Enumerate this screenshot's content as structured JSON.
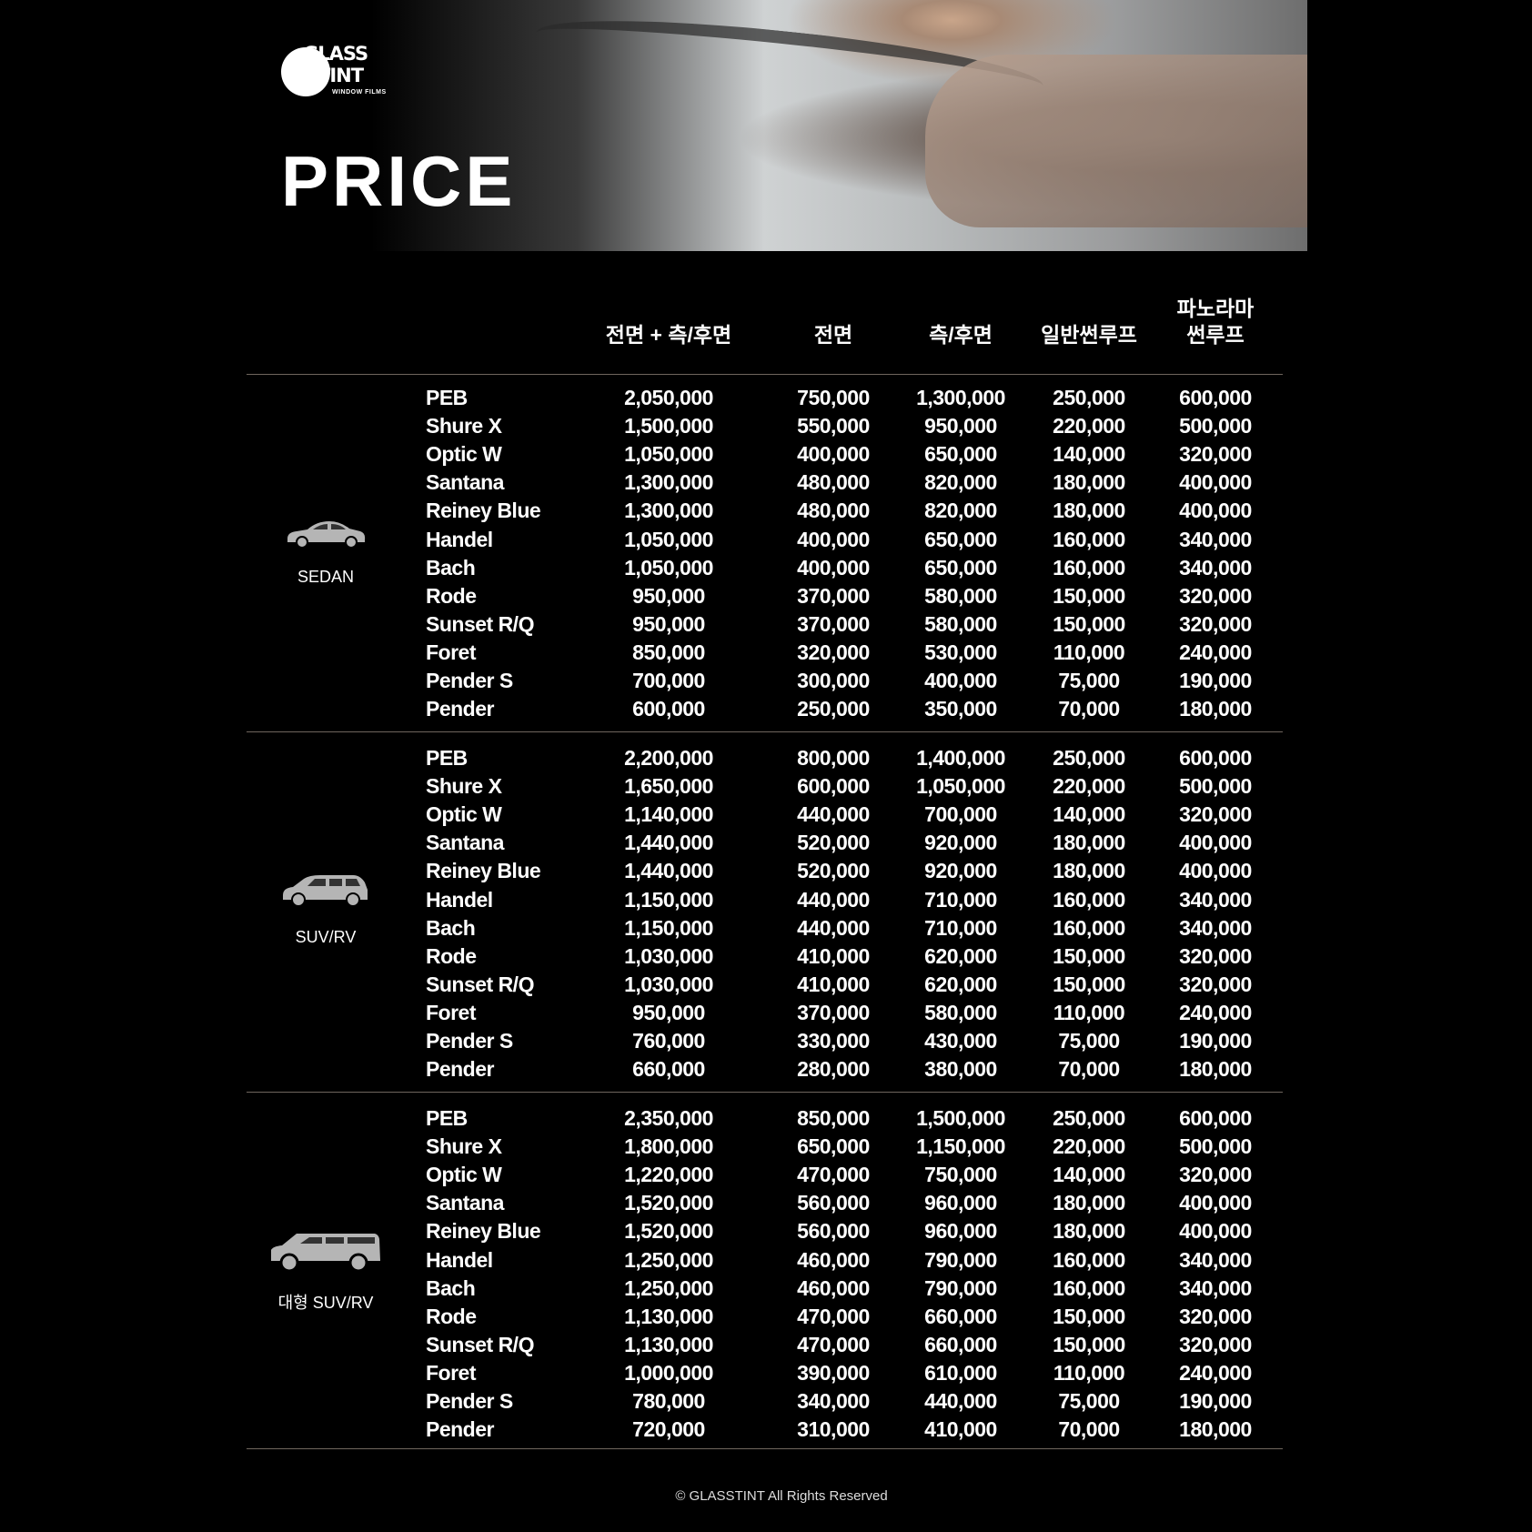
{
  "header": {
    "logo_text": "GLASS TINT WINDOW FILMS",
    "title": "PRICE"
  },
  "columns": [
    "전면 + 측/후면",
    "전면",
    "측/후면",
    "일반썬루프",
    "파노라마\n썬루프"
  ],
  "columns_lines": {
    "panorama_line1": "파노라마",
    "panorama_line2": "썬루프"
  },
  "groups": [
    {
      "label": "SEDAN",
      "icon": "sedan-car-icon",
      "rows": [
        [
          "PEB",
          "2,050,000",
          "750,000",
          "1,300,000",
          "250,000",
          "600,000"
        ],
        [
          "Shure X",
          "1,500,000",
          "550,000",
          "950,000",
          "220,000",
          "500,000"
        ],
        [
          "Optic W",
          "1,050,000",
          "400,000",
          "650,000",
          "140,000",
          "320,000"
        ],
        [
          "Santana",
          "1,300,000",
          "480,000",
          "820,000",
          "180,000",
          "400,000"
        ],
        [
          "Reiney Blue",
          "1,300,000",
          "480,000",
          "820,000",
          "180,000",
          "400,000"
        ],
        [
          "Handel",
          "1,050,000",
          "400,000",
          "650,000",
          "160,000",
          "340,000"
        ],
        [
          "Bach",
          "1,050,000",
          "400,000",
          "650,000",
          "160,000",
          "340,000"
        ],
        [
          "Rode",
          "950,000",
          "370,000",
          "580,000",
          "150,000",
          "320,000"
        ],
        [
          "Sunset R/Q",
          "950,000",
          "370,000",
          "580,000",
          "150,000",
          "320,000"
        ],
        [
          "Foret",
          "850,000",
          "320,000",
          "530,000",
          "110,000",
          "240,000"
        ],
        [
          "Pender S",
          "700,000",
          "300,000",
          "400,000",
          "75,000",
          "190,000"
        ],
        [
          "Pender",
          "600,000",
          "250,000",
          "350,000",
          "70,000",
          "180,000"
        ]
      ]
    },
    {
      "label": "SUV/RV",
      "icon": "suv-car-icon",
      "rows": [
        [
          "PEB",
          "2,200,000",
          "800,000",
          "1,400,000",
          "250,000",
          "600,000"
        ],
        [
          "Shure X",
          "1,650,000",
          "600,000",
          "1,050,000",
          "220,000",
          "500,000"
        ],
        [
          "Optic W",
          "1,140,000",
          "440,000",
          "700,000",
          "140,000",
          "320,000"
        ],
        [
          "Santana",
          "1,440,000",
          "520,000",
          "920,000",
          "180,000",
          "400,000"
        ],
        [
          "Reiney Blue",
          "1,440,000",
          "520,000",
          "920,000",
          "180,000",
          "400,000"
        ],
        [
          "Handel",
          "1,150,000",
          "440,000",
          "710,000",
          "160,000",
          "340,000"
        ],
        [
          "Bach",
          "1,150,000",
          "440,000",
          "710,000",
          "160,000",
          "340,000"
        ],
        [
          "Rode",
          "1,030,000",
          "410,000",
          "620,000",
          "150,000",
          "320,000"
        ],
        [
          "Sunset R/Q",
          "1,030,000",
          "410,000",
          "620,000",
          "150,000",
          "320,000"
        ],
        [
          "Foret",
          "950,000",
          "370,000",
          "580,000",
          "110,000",
          "240,000"
        ],
        [
          "Pender S",
          "760,000",
          "330,000",
          "430,000",
          "75,000",
          "190,000"
        ],
        [
          "Pender",
          "660,000",
          "280,000",
          "380,000",
          "70,000",
          "180,000"
        ]
      ]
    },
    {
      "label": "대형 SUV/RV",
      "icon": "large-suv-car-icon",
      "rows": [
        [
          "PEB",
          "2,350,000",
          "850,000",
          "1,500,000",
          "250,000",
          "600,000"
        ],
        [
          "Shure X",
          "1,800,000",
          "650,000",
          "1,150,000",
          "220,000",
          "500,000"
        ],
        [
          "Optic W",
          "1,220,000",
          "470,000",
          "750,000",
          "140,000",
          "320,000"
        ],
        [
          "Santana",
          "1,520,000",
          "560,000",
          "960,000",
          "180,000",
          "400,000"
        ],
        [
          "Reiney Blue",
          "1,520,000",
          "560,000",
          "960,000",
          "180,000",
          "400,000"
        ],
        [
          "Handel",
          "1,250,000",
          "460,000",
          "790,000",
          "160,000",
          "340,000"
        ],
        [
          "Bach",
          "1,250,000",
          "460,000",
          "790,000",
          "160,000",
          "340,000"
        ],
        [
          "Rode",
          "1,130,000",
          "470,000",
          "660,000",
          "150,000",
          "320,000"
        ],
        [
          "Sunset R/Q",
          "1,130,000",
          "470,000",
          "660,000",
          "150,000",
          "320,000"
        ],
        [
          "Foret",
          "1,000,000",
          "390,000",
          "610,000",
          "110,000",
          "240,000"
        ],
        [
          "Pender S",
          "780,000",
          "340,000",
          "440,000",
          "75,000",
          "190,000"
        ],
        [
          "Pender",
          "720,000",
          "310,000",
          "410,000",
          "70,000",
          "180,000"
        ]
      ]
    }
  ],
  "footer": {
    "copyright": "© GLASSTINT All Rights Reserved"
  },
  "colors": {
    "background": "#000000",
    "text": "#ffffff",
    "divider": "#6f665e",
    "icon": "#b5b5b5"
  }
}
